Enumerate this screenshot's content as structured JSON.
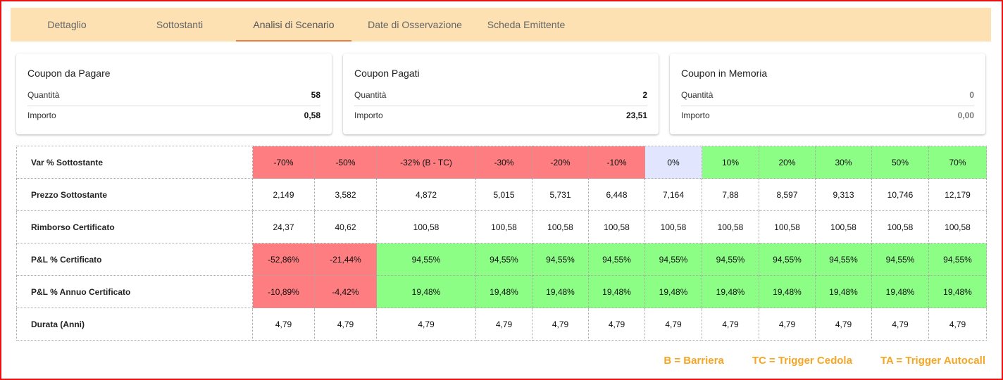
{
  "tabs": [
    {
      "label": "Dettaglio"
    },
    {
      "label": "Sottostanti"
    },
    {
      "label": "Analisi di Scenario"
    },
    {
      "label": "Date di Osservazione"
    },
    {
      "label": "Scheda Emittente"
    }
  ],
  "active_tab": "Analisi di Scenario",
  "cards": [
    {
      "title": "Coupon da Pagare",
      "quantity_label": "Quantità",
      "quantity": "58",
      "amount_label": "Importo",
      "amount": "0,58"
    },
    {
      "title": "Coupon Pagati",
      "quantity_label": "Quantità",
      "quantity": "2",
      "amount_label": "Importo",
      "amount": "23,51"
    },
    {
      "title": "Coupon in Memoria",
      "quantity_label": "Quantità",
      "quantity": "0",
      "amount_label": "Importo",
      "amount": "0,00"
    }
  ],
  "scenario": {
    "rows": [
      {
        "label": "Var % Sottostante",
        "values": [
          "-70%",
          "-50%",
          "-32% (B - TC)",
          "-30%",
          "-20%",
          "-10%",
          "0%",
          "10%",
          "20%",
          "30%",
          "50%",
          "70%"
        ]
      },
      {
        "label": "Prezzo Sottostante",
        "values": [
          "2,149",
          "3,582",
          "4,872",
          "5,015",
          "5,731",
          "6,448",
          "7,164",
          "7,88",
          "8,597",
          "9,313",
          "10,746",
          "12,179"
        ]
      },
      {
        "label": "Rimborso Certificato",
        "values": [
          "24,37",
          "40,62",
          "100,58",
          "100,58",
          "100,58",
          "100,58",
          "100,58",
          "100,58",
          "100,58",
          "100,58",
          "100,58",
          "100,58"
        ]
      },
      {
        "label": "P&L % Certificato",
        "values": [
          "-52,86%",
          "-21,44%",
          "94,55%",
          "94,55%",
          "94,55%",
          "94,55%",
          "94,55%",
          "94,55%",
          "94,55%",
          "94,55%",
          "94,55%",
          "94,55%"
        ]
      },
      {
        "label": "P&L % Annuo Certificato",
        "values": [
          "-10,89%",
          "-4,42%",
          "19,48%",
          "19,48%",
          "19,48%",
          "19,48%",
          "19,48%",
          "19,48%",
          "19,48%",
          "19,48%",
          "19,48%",
          "19,48%"
        ]
      },
      {
        "label": "Durata (Anni)",
        "values": [
          "4,79",
          "4,79",
          "4,79",
          "4,79",
          "4,79",
          "4,79",
          "4,79",
          "4,79",
          "4,79",
          "4,79",
          "4,79",
          "4,79"
        ]
      }
    ],
    "colors": {
      "negative": "#fe7d80",
      "positive": "#8cfe86",
      "neutral": "#e1e5fd"
    }
  },
  "legend": [
    "B = Barriera",
    "TC = Trigger Cedola",
    "TA = Trigger Autocall"
  ]
}
